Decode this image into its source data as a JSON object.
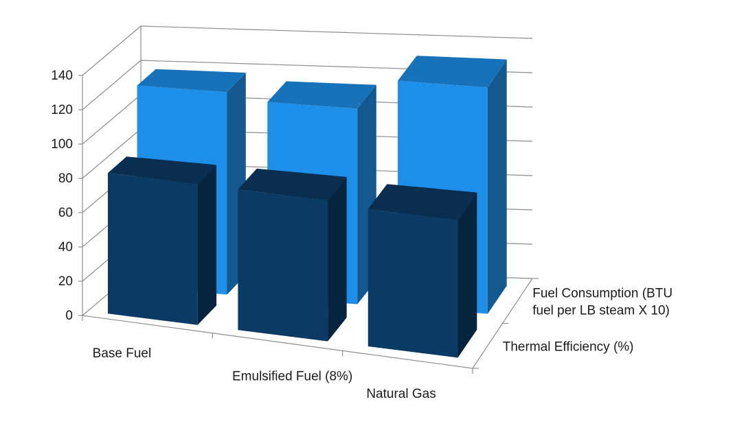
{
  "chart_data": {
    "type": "bar",
    "variant": "3d-column",
    "title": "",
    "xlabel": "",
    "ylabel": "",
    "categories": [
      "Base Fuel",
      "Emulsified Fuel (8%)",
      "Natural Gas"
    ],
    "series": [
      {
        "name": "Thermal Efficiency (%)",
        "label_lines": [
          "Thermal Efficiency (%)"
        ],
        "values": [
          82,
          82,
          80
        ],
        "color": "#0b3a64"
      },
      {
        "name": "Fuel Consumption (BTU fuel per LB steam X 10)",
        "label_lines": [
          "Fuel Consumption (BTU",
          "fuel per LB steam X 10)"
        ],
        "values": [
          118,
          114,
          132
        ],
        "color": "#1e8fe8"
      }
    ],
    "yticks": [
      "0",
      "20",
      "40",
      "60",
      "80",
      "100",
      "120",
      "140"
    ],
    "ylim": [
      0,
      140
    ],
    "grid": true,
    "legend": "none"
  }
}
